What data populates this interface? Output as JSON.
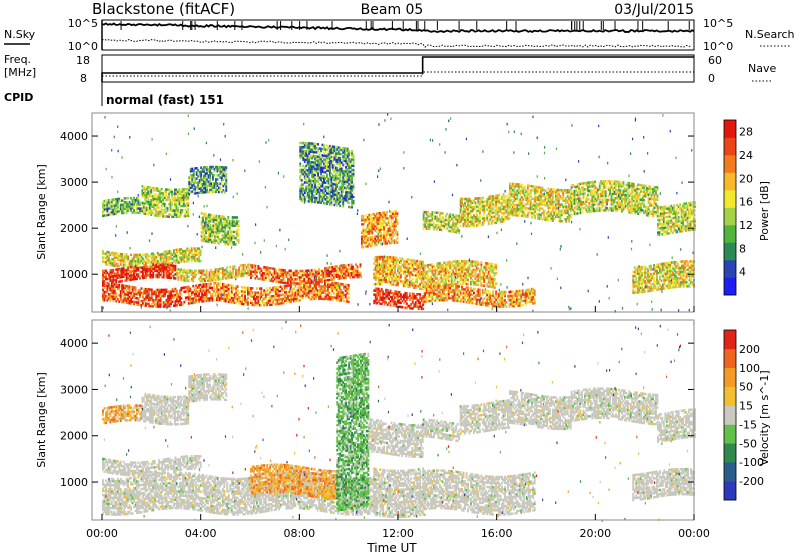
{
  "header": {
    "station": "Blackstone (fitACF)",
    "beam": "Beam 05",
    "date": "03/Jul/2015"
  },
  "noise_panel": {
    "left_label": "N.Sky",
    "right_label": "N.Search",
    "left_ticks": [
      "10^5",
      "10^0"
    ],
    "right_ticks": [
      "10^5",
      "10^0"
    ]
  },
  "freq_panel": {
    "left_label_line1": "Freq.",
    "left_label_line2": "[MHz]",
    "left_ticks": [
      "18",
      "8"
    ],
    "right_label": "Nave",
    "right_ticks": [
      "60",
      "0"
    ],
    "freq_step_time": 13.0
  },
  "cpid_panel": {
    "label": "CPID",
    "program": "normal (fast) 151"
  },
  "axes": {
    "xlabel": "Time UT",
    "x_ticks": [
      "00:00",
      "04:00",
      "08:00",
      "12:00",
      "16:00",
      "20:00",
      "00:00"
    ],
    "xlim": [
      0,
      24
    ],
    "ylabel": "Slant Range [km]",
    "y_ticks": [
      "1000",
      "2000",
      "3000",
      "4000"
    ],
    "ylim": [
      180,
      4500
    ]
  },
  "chart_data": [
    {
      "type": "heatmap",
      "panel": "power",
      "colorbar": {
        "label": "Power [dB]",
        "ticks": [
          "4",
          "8",
          "12",
          "16",
          "20",
          "24",
          "28"
        ],
        "range": [
          0,
          30
        ],
        "colors": [
          "#1e1ef0",
          "#2845b4",
          "#2c8a55",
          "#52b43c",
          "#a6d24a",
          "#f3e830",
          "#f7b82b",
          "#f27b20",
          "#ea4519",
          "#e3160f"
        ]
      },
      "bands": [
        {
          "t0": 0.0,
          "t1": 1.6,
          "r0": 2250,
          "r1": 2600,
          "level": 0.35
        },
        {
          "t0": 1.6,
          "t1": 3.5,
          "r0": 2300,
          "r1": 2900,
          "level": 0.45
        },
        {
          "t0": 3.5,
          "t1": 5.0,
          "r0": 2700,
          "r1": 3250,
          "level": 0.3
        },
        {
          "t0": 0.0,
          "t1": 4.0,
          "r0": 1200,
          "r1": 1500,
          "level": 0.55
        },
        {
          "t0": 4.0,
          "t1": 5.5,
          "r0": 1700,
          "r1": 2300,
          "level": 0.45
        },
        {
          "t0": 0.0,
          "t1": 3.0,
          "r0": 850,
          "r1": 1150,
          "level": 0.92
        },
        {
          "t0": 3.0,
          "t1": 6.0,
          "r0": 900,
          "r1": 1150,
          "level": 0.6
        },
        {
          "t0": 6.0,
          "t1": 10.5,
          "r0": 850,
          "r1": 1150,
          "level": 0.8
        },
        {
          "t0": 0.0,
          "t1": 4.5,
          "r0": 350,
          "r1": 750,
          "level": 0.85
        },
        {
          "t0": 4.5,
          "t1": 10.0,
          "r0": 380,
          "r1": 760,
          "level": 0.75
        },
        {
          "t0": 8.0,
          "t1": 10.2,
          "r0": 2500,
          "r1": 3800,
          "level": 0.3
        },
        {
          "t0": 10.5,
          "t1": 12.0,
          "r0": 1600,
          "r1": 2300,
          "level": 0.7
        },
        {
          "t0": 11.0,
          "t1": 13.0,
          "r0": 700,
          "r1": 1300,
          "level": 0.65
        },
        {
          "t0": 11.0,
          "t1": 13.0,
          "r0": 300,
          "r1": 650,
          "level": 0.9
        },
        {
          "t0": 13.0,
          "t1": 16.0,
          "r0": 700,
          "r1": 1200,
          "level": 0.6
        },
        {
          "t0": 13.0,
          "t1": 17.5,
          "r0": 350,
          "r1": 700,
          "level": 0.7
        },
        {
          "t0": 13.0,
          "t1": 14.5,
          "r0": 1900,
          "r1": 2300,
          "level": 0.5
        },
        {
          "t0": 14.5,
          "t1": 16.5,
          "r0": 2100,
          "r1": 2700,
          "level": 0.55
        },
        {
          "t0": 16.5,
          "t1": 19.0,
          "r0": 2200,
          "r1": 2900,
          "level": 0.55
        },
        {
          "t0": 19.0,
          "t1": 22.5,
          "r0": 2300,
          "r1": 2950,
          "level": 0.5
        },
        {
          "t0": 22.5,
          "t1": 24.0,
          "r0": 1900,
          "r1": 2500,
          "level": 0.5
        },
        {
          "t0": 21.5,
          "t1": 24.0,
          "r0": 650,
          "r1": 1200,
          "level": 0.55
        }
      ]
    },
    {
      "type": "heatmap",
      "panel": "velocity",
      "colorbar": {
        "label": "Velocity [m s^-1]",
        "ticks": [
          "200",
          "100",
          "50",
          "15",
          "-15",
          "-50",
          "-100",
          "-200"
        ],
        "range": [
          -250,
          250
        ],
        "colors": [
          "#2a3ab8",
          "#2b5c8c",
          "#2e8a4c",
          "#62c04a",
          "#c9c9c0",
          "#f0c030",
          "#f59a25",
          "#ee6420",
          "#e02318"
        ]
      },
      "bands": [
        {
          "t0": 0.0,
          "t1": 1.6,
          "r0": 2250,
          "r1": 2600,
          "cls": "orange"
        },
        {
          "t0": 1.6,
          "t1": 3.5,
          "r0": 2300,
          "r1": 2900,
          "cls": "grey"
        },
        {
          "t0": 3.5,
          "t1": 5.0,
          "r0": 2700,
          "r1": 3250,
          "cls": "grey"
        },
        {
          "t0": 0.0,
          "t1": 4.0,
          "r0": 1200,
          "r1": 1500,
          "cls": "grey"
        },
        {
          "t0": 0.0,
          "t1": 11.0,
          "r0": 350,
          "r1": 1150,
          "cls": "grey"
        },
        {
          "t0": 6.0,
          "t1": 9.5,
          "r0": 700,
          "r1": 1300,
          "cls": "orange"
        },
        {
          "t0": 9.5,
          "t1": 10.8,
          "r0": 400,
          "r1": 3700,
          "cls": "green"
        },
        {
          "t0": 10.8,
          "t1": 13.0,
          "r0": 1600,
          "r1": 2300,
          "cls": "grey"
        },
        {
          "t0": 11.0,
          "t1": 13.0,
          "r0": 300,
          "r1": 1300,
          "cls": "grey"
        },
        {
          "t0": 13.0,
          "t1": 17.5,
          "r0": 350,
          "r1": 1200,
          "cls": "grey"
        },
        {
          "t0": 13.0,
          "t1": 14.5,
          "r0": 1900,
          "r1": 2300,
          "cls": "grey"
        },
        {
          "t0": 14.5,
          "t1": 16.5,
          "r0": 2100,
          "r1": 2700,
          "cls": "grey"
        },
        {
          "t0": 16.5,
          "t1": 19.0,
          "r0": 2200,
          "r1": 2900,
          "cls": "grey"
        },
        {
          "t0": 19.0,
          "t1": 22.5,
          "r0": 2300,
          "r1": 2950,
          "cls": "grey"
        },
        {
          "t0": 22.5,
          "t1": 24.0,
          "r0": 1900,
          "r1": 2500,
          "cls": "grey"
        },
        {
          "t0": 21.5,
          "t1": 24.0,
          "r0": 650,
          "r1": 1200,
          "cls": "grey"
        }
      ]
    }
  ]
}
